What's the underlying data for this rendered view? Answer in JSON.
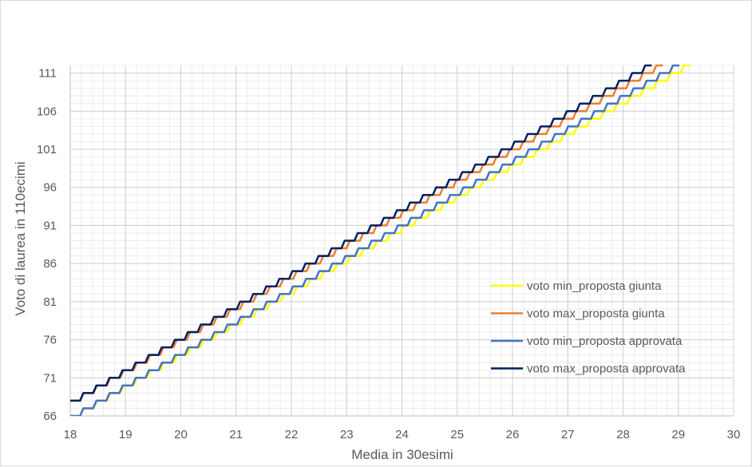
{
  "chart_data": {
    "type": "line",
    "title": "",
    "xlabel": "Media in 30esimi",
    "ylabel": "Voto di laurea in 110ecimi",
    "xlim": [
      18,
      30
    ],
    "ylim": [
      66,
      112
    ],
    "x_ticks": [
      "18",
      "19",
      "20",
      "21",
      "22",
      "23",
      "24",
      "25",
      "26",
      "27",
      "28",
      "29",
      "30"
    ],
    "y_ticks": [
      "66",
      "71",
      "76",
      "81",
      "86",
      "91",
      "96",
      "101",
      "106",
      "111"
    ],
    "grid": true,
    "legend_position": "right",
    "step_shape": "staircase, 1 point per 0.1 of the average",
    "series": [
      {
        "name": "voto min_proposta giunta",
        "color": "#ffff00",
        "x_start": 18.0,
        "y_start": 66,
        "x_end": 29.1,
        "y_end": 112
      },
      {
        "name": "voto max_proposta giunta",
        "color": "#ed7d31",
        "x_start": 18.0,
        "y_start": 68,
        "x_end": 28.6,
        "y_end": 112
      },
      {
        "name": "voto min_proposta approvata",
        "color": "#4472c4",
        "x_start": 18.0,
        "y_start": 66,
        "x_end": 28.9,
        "y_end": 112
      },
      {
        "name": "voto max_proposta approvata",
        "color": "#002060",
        "x_start": 18.0,
        "y_start": 68,
        "x_end": 28.4,
        "y_end": 112
      }
    ]
  }
}
